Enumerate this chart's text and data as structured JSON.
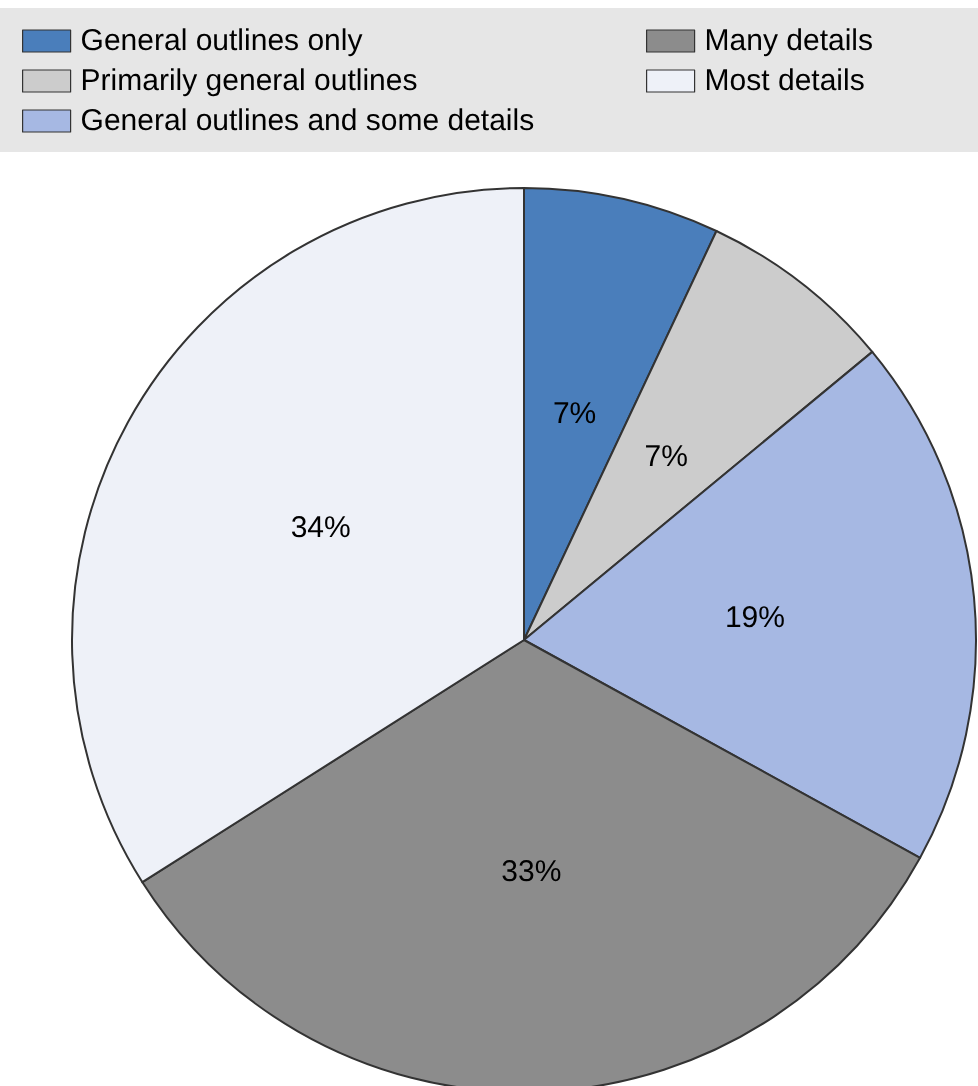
{
  "chart_data": {
    "type": "pie",
    "categories": [
      "General outlines only",
      "Primarily general outlines",
      "General outlines and some details",
      "Many details",
      "Most details"
    ],
    "values": [
      7,
      7,
      19,
      33,
      34
    ],
    "colors": [
      "#4a7ebb",
      "#cccccc",
      "#a6b8e3",
      "#8c8c8c",
      "#eef1f8"
    ],
    "value_labels": [
      "7%",
      "7%",
      "19%",
      "33%",
      "34%"
    ],
    "legend": "top"
  }
}
